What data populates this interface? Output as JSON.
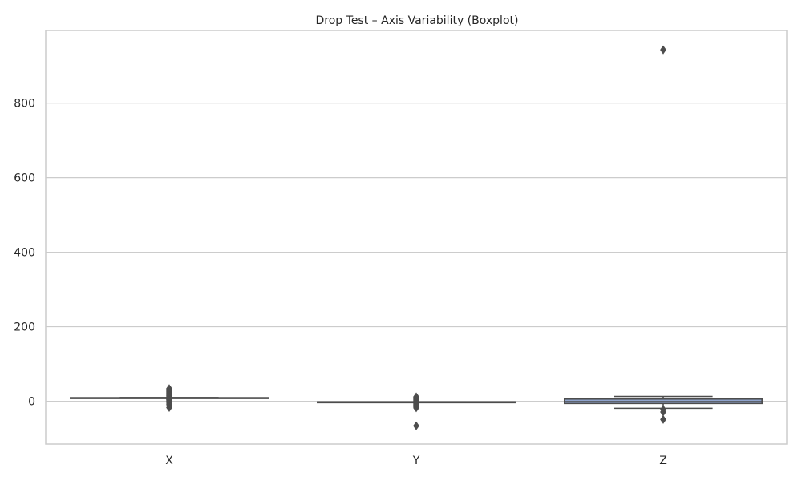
{
  "chart_data": {
    "type": "boxplot",
    "title": "Drop Test – Axis Variability (Boxplot)",
    "xlabel": "",
    "ylabel": "",
    "categories": [
      "X",
      "Y",
      "Z"
    ],
    "ylim": [
      -115,
      995
    ],
    "yticks": [
      0,
      200,
      400,
      600,
      800
    ],
    "grid": true,
    "boxes": [
      {
        "category": "X",
        "whisker_low": 8.5,
        "q1": 8.6,
        "median": 9.0,
        "q3": 9.6,
        "whisker_high": 9.8,
        "outliers": [
          -17,
          -12,
          -8,
          -5,
          -2,
          0,
          2,
          4,
          5,
          6,
          8,
          10,
          12,
          14,
          16,
          18,
          20,
          22,
          24,
          26,
          28,
          30,
          32,
          34
        ]
      },
      {
        "category": "Y",
        "whisker_low": -2.5,
        "q1": -2.3,
        "median": -2.0,
        "q3": -1.7,
        "whisker_high": -1.5,
        "outliers": [
          -66,
          -18,
          -15,
          -12,
          -10,
          -8,
          -6,
          -4,
          0,
          2,
          4,
          6,
          8,
          10,
          12
        ]
      },
      {
        "category": "Z",
        "whisker_low": -19,
        "q1": -6,
        "median": -1,
        "q3": 6,
        "whisker_high": 13,
        "outliers": [
          -49,
          -29,
          -22,
          943
        ]
      }
    ],
    "colors": {
      "box_fill_X": "#7b8fbf",
      "box_fill_Y": "#7b8fbf",
      "box_fill_Z": "#8fa3cc",
      "line": "#4d4d4d",
      "grid": "#cccccc"
    }
  }
}
